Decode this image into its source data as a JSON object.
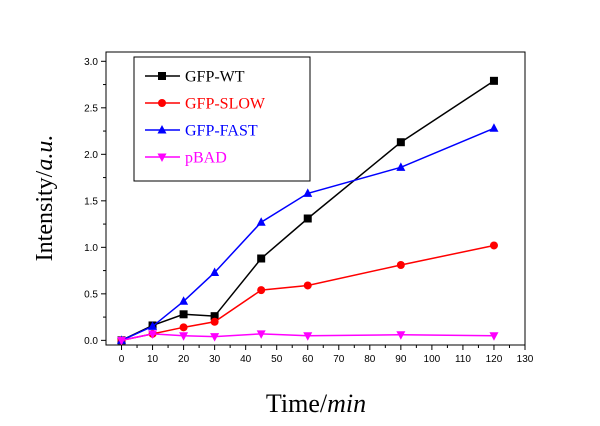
{
  "chart_data": {
    "type": "line",
    "xlabel_main": "Time/",
    "xlabel_unit": "min",
    "ylabel_main": "Intensity/",
    "ylabel_unit": "a.u.",
    "xlim": [
      -5,
      130
    ],
    "ylim": [
      -0.05,
      3.1
    ],
    "xticks": [
      0,
      10,
      20,
      30,
      40,
      50,
      60,
      70,
      80,
      90,
      100,
      110,
      120,
      130
    ],
    "yticks": [
      0.0,
      0.5,
      1.0,
      1.5,
      2.0,
      2.5,
      3.0
    ],
    "legend_position": "top-left",
    "grid": false,
    "series": [
      {
        "name": "GFP-WT",
        "color": "#000000",
        "marker": "square",
        "x": [
          0,
          10,
          20,
          30,
          45,
          60,
          90,
          120
        ],
        "y": [
          0.0,
          0.16,
          0.28,
          0.26,
          0.88,
          1.31,
          2.13,
          2.79
        ]
      },
      {
        "name": "GFP-SLOW",
        "color": "#ff0000",
        "marker": "circle",
        "x": [
          0,
          10,
          20,
          30,
          45,
          60,
          90,
          120
        ],
        "y": [
          0.0,
          0.07,
          0.14,
          0.2,
          0.54,
          0.59,
          0.81,
          1.02
        ]
      },
      {
        "name": "GFP-FAST",
        "color": "#0000ff",
        "marker": "triangle-up",
        "x": [
          0,
          10,
          20,
          30,
          45,
          60,
          90,
          120
        ],
        "y": [
          0.0,
          0.15,
          0.42,
          0.73,
          1.27,
          1.58,
          1.86,
          2.28
        ]
      },
      {
        "name": "pBAD",
        "color": "#ff00ff",
        "marker": "triangle-down",
        "x": [
          0,
          10,
          20,
          30,
          45,
          60,
          90,
          120
        ],
        "y": [
          0.0,
          0.07,
          0.05,
          0.04,
          0.07,
          0.05,
          0.06,
          0.05
        ]
      }
    ]
  }
}
